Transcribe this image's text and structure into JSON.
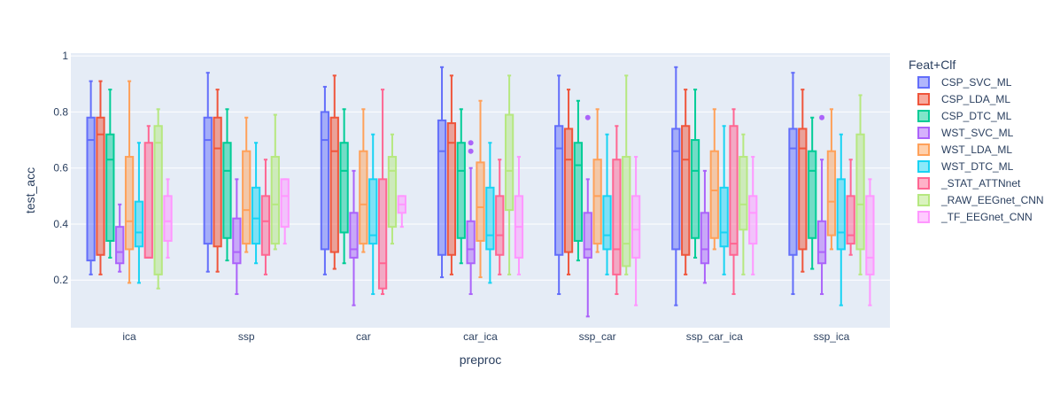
{
  "chart_data": {
    "type": "box",
    "xlabel": "preproc",
    "ylabel": "test_acc",
    "ylim": [
      0.03,
      1.01
    ],
    "yticks": [
      0.2,
      0.4,
      0.6,
      0.8,
      1
    ],
    "ytick_labels": [
      "0.2",
      "0.4",
      "0.6",
      "0.8",
      "1"
    ],
    "grid": true,
    "legend_title": "Feat+Clf",
    "legend_position": "right",
    "categories": [
      "ica",
      "ssp",
      "car",
      "car_ica",
      "ssp_car",
      "ssp_car_ica",
      "ssp_ica"
    ],
    "series": [
      {
        "name": "CSP_SVC_ML",
        "color": "#636efa",
        "boxes": [
          {
            "min": 0.22,
            "q1": 0.27,
            "median": 0.7,
            "q3": 0.78,
            "max": 0.91,
            "outliers": []
          },
          {
            "min": 0.23,
            "q1": 0.33,
            "median": 0.7,
            "q3": 0.78,
            "max": 0.94,
            "outliers": []
          },
          {
            "min": 0.22,
            "q1": 0.31,
            "median": 0.7,
            "q3": 0.8,
            "max": 0.89,
            "outliers": []
          },
          {
            "min": 0.21,
            "q1": 0.29,
            "median": 0.66,
            "q3": 0.77,
            "max": 0.96,
            "outliers": []
          },
          {
            "min": 0.15,
            "q1": 0.29,
            "median": 0.67,
            "q3": 0.75,
            "max": 0.93,
            "outliers": []
          },
          {
            "min": 0.11,
            "q1": 0.31,
            "median": 0.66,
            "q3": 0.74,
            "max": 0.96,
            "outliers": []
          },
          {
            "min": 0.15,
            "q1": 0.29,
            "median": 0.67,
            "q3": 0.74,
            "max": 0.94,
            "outliers": []
          }
        ]
      },
      {
        "name": "CSP_LDA_ML",
        "color": "#ef553b",
        "boxes": [
          {
            "min": 0.22,
            "q1": 0.29,
            "median": 0.72,
            "q3": 0.78,
            "max": 0.91,
            "outliers": []
          },
          {
            "min": 0.23,
            "q1": 0.32,
            "median": 0.67,
            "q3": 0.78,
            "max": 0.88,
            "outliers": []
          },
          {
            "min": 0.24,
            "q1": 0.3,
            "median": 0.66,
            "q3": 0.78,
            "max": 0.93,
            "outliers": []
          },
          {
            "min": 0.22,
            "q1": 0.29,
            "median": 0.69,
            "q3": 0.76,
            "max": 0.93,
            "outliers": []
          },
          {
            "min": 0.22,
            "q1": 0.3,
            "median": 0.63,
            "q3": 0.74,
            "max": 0.88,
            "outliers": []
          },
          {
            "min": 0.22,
            "q1": 0.29,
            "median": 0.63,
            "q3": 0.75,
            "max": 0.88,
            "outliers": []
          },
          {
            "min": 0.23,
            "q1": 0.31,
            "median": 0.67,
            "q3": 0.74,
            "max": 0.88,
            "outliers": []
          }
        ]
      },
      {
        "name": "CSP_DTC_ML",
        "color": "#00cc96",
        "boxes": [
          {
            "min": 0.28,
            "q1": 0.34,
            "median": 0.63,
            "q3": 0.72,
            "max": 0.88,
            "outliers": []
          },
          {
            "min": 0.27,
            "q1": 0.35,
            "median": 0.59,
            "q3": 0.69,
            "max": 0.81,
            "outliers": []
          },
          {
            "min": 0.26,
            "q1": 0.37,
            "median": 0.59,
            "q3": 0.69,
            "max": 0.81,
            "outliers": []
          },
          {
            "min": 0.26,
            "q1": 0.35,
            "median": 0.59,
            "q3": 0.69,
            "max": 0.81,
            "outliers": []
          },
          {
            "min": 0.27,
            "q1": 0.34,
            "median": 0.61,
            "q3": 0.69,
            "max": 0.84,
            "outliers": []
          },
          {
            "min": 0.28,
            "q1": 0.35,
            "median": 0.59,
            "q3": 0.7,
            "max": 0.88,
            "outliers": []
          },
          {
            "min": 0.24,
            "q1": 0.35,
            "median": 0.59,
            "q3": 0.66,
            "max": 0.78,
            "outliers": []
          }
        ]
      },
      {
        "name": "WST_SVC_ML",
        "color": "#ab63fa",
        "boxes": [
          {
            "min": 0.23,
            "q1": 0.26,
            "median": 0.3,
            "q3": 0.39,
            "max": 0.47,
            "outliers": []
          },
          {
            "min": 0.15,
            "q1": 0.26,
            "median": 0.3,
            "q3": 0.42,
            "max": 0.56,
            "outliers": []
          },
          {
            "min": 0.11,
            "q1": 0.28,
            "median": 0.31,
            "q3": 0.44,
            "max": 0.59,
            "outliers": []
          },
          {
            "min": 0.15,
            "q1": 0.26,
            "median": 0.31,
            "q3": 0.41,
            "max": 0.6,
            "outliers": [
              0.66,
              0.69
            ]
          },
          {
            "min": 0.07,
            "q1": 0.28,
            "median": 0.31,
            "q3": 0.44,
            "max": 0.56,
            "outliers": [
              0.78
            ]
          },
          {
            "min": 0.19,
            "q1": 0.26,
            "median": 0.31,
            "q3": 0.44,
            "max": 0.59,
            "outliers": []
          },
          {
            "min": 0.15,
            "q1": 0.26,
            "median": 0.3,
            "q3": 0.41,
            "max": 0.63,
            "outliers": [
              0.78
            ]
          }
        ]
      },
      {
        "name": "WST_LDA_ML",
        "color": "#ffa15a",
        "boxes": [
          {
            "min": 0.19,
            "q1": 0.31,
            "median": 0.41,
            "q3": 0.64,
            "max": 0.91,
            "outliers": []
          },
          {
            "min": 0.3,
            "q1": 0.33,
            "median": 0.45,
            "q3": 0.66,
            "max": 0.78,
            "outliers": []
          },
          {
            "min": 0.3,
            "q1": 0.33,
            "median": 0.47,
            "q3": 0.66,
            "max": 0.81,
            "outliers": []
          },
          {
            "min": 0.21,
            "q1": 0.34,
            "median": 0.46,
            "q3": 0.62,
            "max": 0.84,
            "outliers": []
          },
          {
            "min": 0.3,
            "q1": 0.33,
            "median": 0.5,
            "q3": 0.63,
            "max": 0.81,
            "outliers": []
          },
          {
            "min": 0.31,
            "q1": 0.35,
            "median": 0.52,
            "q3": 0.66,
            "max": 0.81,
            "outliers": []
          },
          {
            "min": 0.31,
            "q1": 0.36,
            "median": 0.48,
            "q3": 0.66,
            "max": 0.81,
            "outliers": []
          }
        ]
      },
      {
        "name": "WST_DTC_ML",
        "color": "#19d3f3",
        "boxes": [
          {
            "min": 0.19,
            "q1": 0.32,
            "median": 0.37,
            "q3": 0.48,
            "max": 0.69,
            "outliers": []
          },
          {
            "min": 0.26,
            "q1": 0.33,
            "median": 0.42,
            "q3": 0.53,
            "max": 0.69,
            "outliers": []
          },
          {
            "min": 0.15,
            "q1": 0.33,
            "median": 0.36,
            "q3": 0.56,
            "max": 0.72,
            "outliers": []
          },
          {
            "min": 0.19,
            "q1": 0.31,
            "median": 0.36,
            "q3": 0.53,
            "max": 0.69,
            "outliers": []
          },
          {
            "min": 0.22,
            "q1": 0.31,
            "median": 0.36,
            "q3": 0.5,
            "max": 0.72,
            "outliers": []
          },
          {
            "min": 0.22,
            "q1": 0.32,
            "median": 0.37,
            "q3": 0.53,
            "max": 0.75,
            "outliers": []
          },
          {
            "min": 0.11,
            "q1": 0.31,
            "median": 0.37,
            "q3": 0.56,
            "max": 0.72,
            "outliers": []
          }
        ]
      },
      {
        "name": "_STAT_ATTNnet",
        "color": "#ff6692",
        "boxes": [
          {
            "min": 0.28,
            "q1": 0.28,
            "median": 0.28,
            "q3": 0.69,
            "max": 0.75,
            "outliers": []
          },
          {
            "min": 0.22,
            "q1": 0.29,
            "median": 0.41,
            "q3": 0.5,
            "max": 0.63,
            "outliers": []
          },
          {
            "min": 0.15,
            "q1": 0.17,
            "median": 0.26,
            "q3": 0.56,
            "max": 0.88,
            "outliers": []
          },
          {
            "min": 0.22,
            "q1": 0.29,
            "median": 0.36,
            "q3": 0.5,
            "max": 0.63,
            "outliers": []
          },
          {
            "min": 0.15,
            "q1": 0.22,
            "median": 0.31,
            "q3": 0.63,
            "max": 0.75,
            "outliers": []
          },
          {
            "min": 0.15,
            "q1": 0.29,
            "median": 0.33,
            "q3": 0.75,
            "max": 0.81,
            "outliers": []
          },
          {
            "min": 0.29,
            "q1": 0.33,
            "median": 0.36,
            "q3": 0.5,
            "max": 0.63,
            "outliers": []
          }
        ]
      },
      {
        "name": "_RAW_EEGnet_CNN",
        "color": "#b6e880",
        "boxes": [
          {
            "min": 0.17,
            "q1": 0.22,
            "median": 0.69,
            "q3": 0.75,
            "max": 0.81,
            "outliers": []
          },
          {
            "min": 0.31,
            "q1": 0.33,
            "median": 0.47,
            "q3": 0.64,
            "max": 0.79,
            "outliers": []
          },
          {
            "min": 0.33,
            "q1": 0.39,
            "median": 0.59,
            "q3": 0.64,
            "max": 0.72,
            "outliers": []
          },
          {
            "min": 0.22,
            "q1": 0.45,
            "median": 0.59,
            "q3": 0.79,
            "max": 0.93,
            "outliers": []
          },
          {
            "min": 0.22,
            "q1": 0.25,
            "median": 0.33,
            "q3": 0.64,
            "max": 0.93,
            "outliers": []
          },
          {
            "min": 0.22,
            "q1": 0.38,
            "median": 0.47,
            "q3": 0.64,
            "max": 0.72,
            "outliers": []
          },
          {
            "min": 0.22,
            "q1": 0.31,
            "median": 0.47,
            "q3": 0.72,
            "max": 0.86,
            "outliers": []
          }
        ]
      },
      {
        "name": "_TF_EEGnet_CNN",
        "color": "#ff97ff",
        "boxes": [
          {
            "min": 0.28,
            "q1": 0.34,
            "median": 0.41,
            "q3": 0.5,
            "max": 0.56,
            "outliers": []
          },
          {
            "min": 0.33,
            "q1": 0.39,
            "median": 0.5,
            "q3": 0.56,
            "max": 0.56,
            "outliers": []
          },
          {
            "min": 0.39,
            "q1": 0.44,
            "median": 0.47,
            "q3": 0.5,
            "max": 0.5,
            "outliers": []
          },
          {
            "min": 0.22,
            "q1": 0.28,
            "median": 0.39,
            "q3": 0.5,
            "max": 0.64,
            "outliers": []
          },
          {
            "min": 0.11,
            "q1": 0.28,
            "median": 0.38,
            "q3": 0.5,
            "max": 0.64,
            "outliers": []
          },
          {
            "min": 0.22,
            "q1": 0.33,
            "median": 0.44,
            "q3": 0.5,
            "max": 0.64,
            "outliers": []
          },
          {
            "min": 0.11,
            "q1": 0.22,
            "median": 0.28,
            "q3": 0.5,
            "max": 0.56,
            "outliers": []
          }
        ]
      }
    ]
  }
}
